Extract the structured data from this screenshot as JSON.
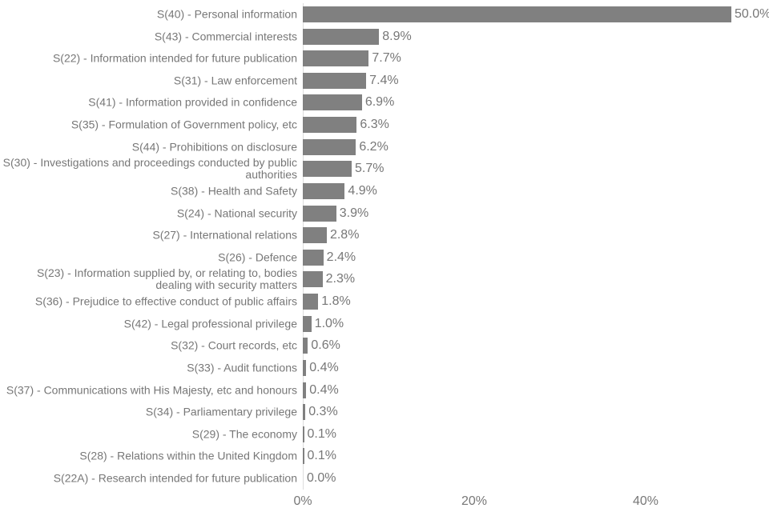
{
  "chart_data": {
    "type": "bar",
    "orientation": "horizontal",
    "categories": [
      "S(40) - Personal information",
      "S(43) - Commercial interests",
      "S(22) - Information intended for future publication",
      "S(31) - Law enforcement",
      "S(41) - Information provided in confidence",
      "S(35) - Formulation of Government policy, etc",
      "S(44) - Prohibitions on disclosure",
      "S(30) - Investigations and proceedings conducted by public authorities",
      "S(38) - Health and Safety",
      "S(24) - National security",
      "S(27) - International relations",
      "S(26) - Defence",
      "S(23) - Information supplied by, or relating to, bodies dealing with security matters",
      "S(36) - Prejudice to effective conduct of public affairs",
      "S(42) - Legal professional privilege",
      "S(32) - Court records, etc",
      "S(33) - Audit functions",
      "S(37) - Communications with His Majesty, etc and honours",
      "S(34) - Parliamentary privilege",
      "S(29) - The economy",
      "S(28) - Relations within the United Kingdom",
      "S(22A) - Research intended for future publication"
    ],
    "values": [
      50.0,
      8.9,
      7.7,
      7.4,
      6.9,
      6.3,
      6.2,
      5.7,
      4.9,
      3.9,
      2.8,
      2.4,
      2.3,
      1.8,
      1.0,
      0.6,
      0.4,
      0.4,
      0.3,
      0.1,
      0.1,
      0.0
    ],
    "data_labels": [
      "50.0%",
      "8.9%",
      "7.7%",
      "7.4%",
      "6.9%",
      "6.3%",
      "6.2%",
      "5.7%",
      "4.9%",
      "3.9%",
      "2.8%",
      "2.4%",
      "2.3%",
      "1.8%",
      "1.0%",
      "0.6%",
      "0.4%",
      "0.4%",
      "0.3%",
      "0.1%",
      "0.1%",
      "0.0%"
    ],
    "x_ticks": [
      "0%",
      "20%",
      "40%"
    ],
    "x_tick_values": [
      0,
      20,
      40
    ],
    "xlim": [
      0,
      54
    ],
    "title": "",
    "xlabel": "",
    "ylabel": "",
    "grid": false,
    "legend": "none",
    "bar_color": "#808080",
    "text_color": "#777777"
  }
}
